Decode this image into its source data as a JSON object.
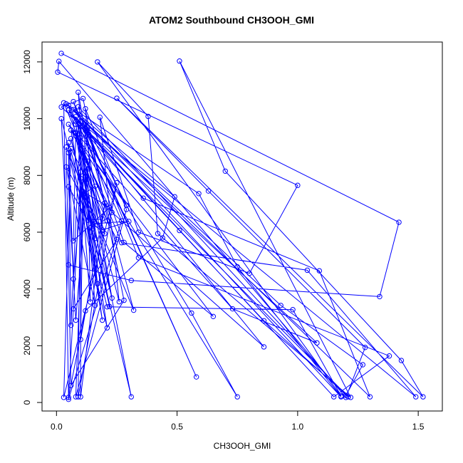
{
  "chart_data": {
    "type": "line",
    "title": "ATOM2 Southbound CH3OOH_GMI",
    "xlabel": "CH3OOH_GMI",
    "ylabel": "Altitude (m)",
    "xlim": [
      -0.06,
      1.6
    ],
    "ylim": [
      -300,
      12700
    ],
    "xticks": [
      "0.0",
      "0.5",
      "1.0",
      "1.5"
    ],
    "xtick_values": [
      0,
      0.5,
      1.0,
      1.5
    ],
    "yticks": [
      "0",
      "2000",
      "4000",
      "6000",
      "8000",
      "10000",
      "12000"
    ],
    "ytick_values": [
      0,
      2000,
      4000,
      6000,
      8000,
      10000,
      12000
    ],
    "grid": false,
    "series": [
      {
        "color": "#0000ff",
        "marker": "open-circle",
        "points": [
          [
            0.02,
            12300
          ],
          [
            1.42,
            6350
          ],
          [
            1.34,
            3730
          ],
          [
            0.31,
            4300
          ],
          [
            0.05,
            4850
          ],
          [
            0.02,
            10000
          ],
          [
            0.21,
            3370
          ],
          [
            0.98,
            3270
          ],
          [
            1.18,
            230
          ],
          [
            0.17,
            12000
          ],
          [
            0.38,
            10080
          ],
          [
            0.42,
            5950
          ],
          [
            1.22,
            180
          ],
          [
            0.51,
            12030
          ],
          [
            0.7,
            8150
          ],
          [
            1.43,
            1480
          ],
          [
            1.52,
            200
          ],
          [
            0.25,
            10720
          ],
          [
            0.63,
            7450
          ],
          [
            1.28,
            1940
          ],
          [
            1.2,
            180
          ],
          [
            0.01,
            12020
          ],
          [
            0.005,
            11640
          ],
          [
            1.0,
            7650
          ],
          [
            0.8,
            4550
          ],
          [
            0.34,
            6000
          ],
          [
            0.18,
            10050
          ],
          [
            0.26,
            3550
          ],
          [
            0.05,
            10470
          ],
          [
            0.59,
            7360
          ],
          [
            0.75,
            4780
          ],
          [
            1.18,
            200
          ],
          [
            0.07,
            10320
          ],
          [
            0.49,
            7250
          ],
          [
            0.44,
            5800
          ],
          [
            0.12,
            3230
          ],
          [
            0.05,
            180
          ],
          [
            0.03,
            10560
          ],
          [
            0.27,
            5630
          ],
          [
            1.04,
            4660
          ],
          [
            1.49,
            200
          ],
          [
            0.06,
            10150
          ],
          [
            0.51,
            6060
          ],
          [
            0.86,
            2880
          ],
          [
            1.21,
            200
          ],
          [
            0.08,
            9900
          ],
          [
            0.36,
            7200
          ],
          [
            1.09,
            4640
          ],
          [
            1.3,
            200
          ],
          [
            0.04,
            10520
          ],
          [
            0.93,
            3420
          ],
          [
            1.27,
            1330
          ],
          [
            1.2,
            250
          ],
          [
            0.09,
            10420
          ],
          [
            0.34,
            5100
          ],
          [
            1.38,
            1640
          ],
          [
            1.15,
            200
          ],
          [
            0.05,
            10300
          ],
          [
            0.56,
            3150
          ],
          [
            0.75,
            200
          ],
          [
            0.05,
            9800
          ],
          [
            0.73,
            3300
          ],
          [
            1.08,
            2100
          ],
          [
            0.02,
            10410
          ],
          [
            0.11,
            10710
          ],
          [
            0.28,
            3600
          ],
          [
            0.06,
            600
          ],
          [
            0.04,
            9000
          ],
          [
            0.32,
            3250
          ],
          [
            0.12,
            9580
          ],
          [
            0.58,
            900
          ],
          [
            0.07,
            10600
          ],
          [
            0.28,
            5640
          ],
          [
            0.65,
            3030
          ],
          [
            0.06,
            9600
          ],
          [
            0.23,
            6700
          ],
          [
            0.86,
            1960
          ],
          [
            0.08,
            10070
          ],
          [
            0.31,
            200
          ],
          [
            0.06,
            9300
          ],
          [
            0.22,
            3380
          ],
          [
            0.08,
            9800
          ],
          [
            0.21,
            2630
          ],
          [
            0.05,
            8800
          ],
          [
            0.06,
            2720
          ],
          [
            0.1,
            9900
          ],
          [
            0.09,
            200
          ],
          [
            0.25,
            7740
          ],
          [
            0.03,
            180
          ],
          [
            0.06,
            8950
          ],
          [
            0.25,
            5740
          ],
          [
            0.07,
            3300
          ],
          [
            0.1,
            8120
          ],
          [
            0.05,
            110
          ],
          [
            0.27,
            6400
          ],
          [
            0.09,
            9800
          ],
          [
            0.16,
            5780
          ],
          [
            0.12,
            10350
          ],
          [
            0.29,
            6800
          ],
          [
            0.08,
            200
          ],
          [
            0.12,
            9860
          ],
          [
            0.29,
            6950
          ],
          [
            0.08,
            9400
          ],
          [
            0.15,
            6120
          ],
          [
            0.05,
            9150
          ],
          [
            0.07,
            4350
          ],
          [
            0.13,
            9700
          ],
          [
            0.2,
            7020
          ],
          [
            0.1,
            2220
          ],
          [
            0.11,
            7430
          ],
          [
            0.22,
            6870
          ],
          [
            0.07,
            5700
          ],
          [
            0.08,
            9480
          ],
          [
            0.19,
            6470
          ],
          [
            0.13,
            6420
          ],
          [
            0.05,
            7600
          ],
          [
            0.08,
            2900
          ],
          [
            0.13,
            8230
          ],
          [
            0.14,
            3540
          ],
          [
            0.09,
            9250
          ],
          [
            0.2,
            7030
          ],
          [
            0.1,
            200
          ],
          [
            0.1,
            7900
          ],
          [
            0.23,
            3680
          ],
          [
            0.13,
            8500
          ],
          [
            0.12,
            7220
          ],
          [
            0.17,
            6250
          ],
          [
            0.04,
            8300
          ],
          [
            0.16,
            3420
          ],
          [
            0.09,
            10930
          ],
          [
            0.19,
            6080
          ],
          [
            0.3,
            6380
          ],
          [
            0.15,
            6300
          ],
          [
            0.2,
            5950
          ],
          [
            0.08,
            9520
          ],
          [
            0.21,
            6400
          ],
          [
            0.16,
            7620
          ],
          [
            0.11,
            7330
          ],
          [
            0.14,
            6000
          ],
          [
            0.19,
            2900
          ],
          [
            0.06,
            9600
          ],
          [
            0.17,
            4180
          ],
          [
            0.1,
            9330
          ]
        ]
      }
    ]
  }
}
